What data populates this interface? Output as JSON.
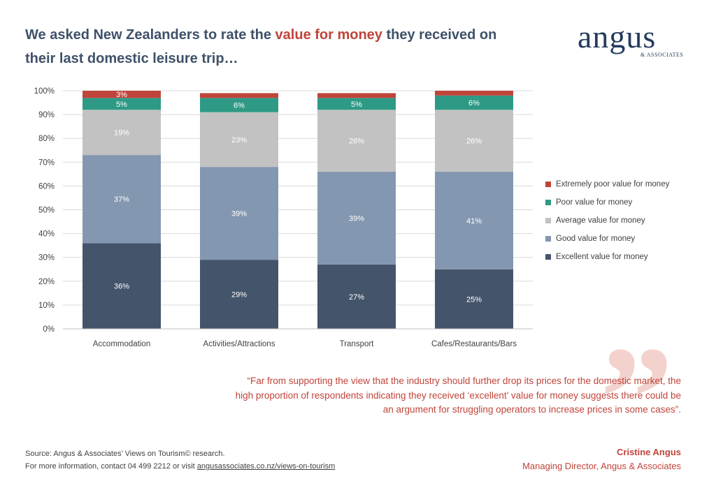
{
  "headline": {
    "part1": "We asked New Zealanders to rate the ",
    "accent": "value for money",
    "part2": " they received on their last domestic leisure trip…"
  },
  "logo": {
    "word": "angus",
    "sub": "& ASSOCIATES"
  },
  "colors": {
    "extremely_poor": "#c0443a",
    "poor": "#2e9a85",
    "average": "#c2c2c2",
    "good": "#8497b0",
    "excellent": "#44546a",
    "accent": "#c0443a",
    "headline": "#3f5169"
  },
  "chart_data": {
    "type": "bar",
    "stacked": true,
    "categories": [
      "Accommodation",
      "Activities/Attractions",
      "Transport",
      "Cafes/Restaurants/Bars"
    ],
    "series": [
      {
        "name": "Excellent value for money",
        "values": [
          36,
          29,
          27,
          25
        ],
        "labels": [
          "36%",
          "29%",
          "27%",
          "25%"
        ],
        "color_key": "excellent",
        "label_color": "#ffffff"
      },
      {
        "name": "Good value for money",
        "values": [
          37,
          39,
          39,
          41
        ],
        "labels": [
          "37%",
          "39%",
          "39%",
          "41%"
        ],
        "color_key": "good",
        "label_color": "#ffffff"
      },
      {
        "name": "Average value for money",
        "values": [
          19,
          23,
          26,
          26
        ],
        "labels": [
          "19%",
          "23%",
          "26%",
          "26%"
        ],
        "color_key": "average",
        "label_color": "#ffffff"
      },
      {
        "name": "Poor value for money",
        "values": [
          5,
          6,
          5,
          6
        ],
        "labels": [
          "5%",
          "6%",
          "5%",
          "6%"
        ],
        "color_key": "poor",
        "label_color": "#ffffff"
      },
      {
        "name": "Extremely poor value for money",
        "values": [
          3,
          2,
          2,
          2
        ],
        "labels": [
          "3%",
          "",
          "",
          ""
        ],
        "color_key": "extremely_poor",
        "label_color": "#ffffff"
      }
    ],
    "ylim": [
      0,
      100
    ],
    "yticks": [
      "0%",
      "10%",
      "20%",
      "30%",
      "40%",
      "50%",
      "60%",
      "70%",
      "80%",
      "90%",
      "100%"
    ],
    "grid": true,
    "legend_position": "right",
    "legend_order": [
      "Extremely poor value for money",
      "Poor value for money",
      "Average value for money",
      "Good value for money",
      "Excellent value for money"
    ]
  },
  "quote": {
    "text": "“Far from supporting the view that the industry should further drop its prices for the domestic market, the high proportion of respondents indicating they received ‘excellent’ value for money suggests there could be an argument for struggling operators to increase prices in some cases”.",
    "author": "Cristine Angus",
    "role": "Managing Director, Angus & Associates"
  },
  "footer": {
    "source": "Source: Angus & Associates’ Views on Tourism© research.",
    "contact_prefix": "For more information, contact 04 499 2212 or visit ",
    "contact_link": "angusassociates.co.nz/views-on-tourism"
  }
}
